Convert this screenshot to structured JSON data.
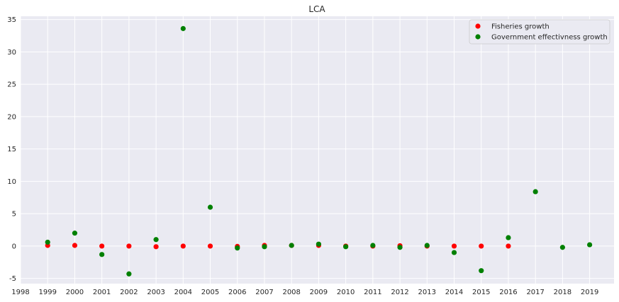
{
  "chart_data": {
    "type": "scatter",
    "title": "LCA",
    "xlabel": "",
    "ylabel": "",
    "xlim": [
      1998,
      2019.9
    ],
    "ylim": [
      -5.8,
      35.5
    ],
    "xticks": [
      1998,
      1999,
      2000,
      2001,
      2002,
      2003,
      2004,
      2005,
      2006,
      2007,
      2008,
      2009,
      2010,
      2011,
      2012,
      2013,
      2014,
      2015,
      2016,
      2017,
      2018,
      2019
    ],
    "yticks": [
      -5,
      0,
      5,
      10,
      15,
      20,
      25,
      30,
      35
    ],
    "grid": true,
    "legend_position": "top-right",
    "series": [
      {
        "name": "Fisheries growth",
        "color": "#ff0000",
        "points": [
          [
            1999,
            0.1
          ],
          [
            2000,
            0.1
          ],
          [
            2001,
            0.0
          ],
          [
            2002,
            0.0
          ],
          [
            2003,
            -0.1
          ],
          [
            2004,
            0.0
          ],
          [
            2005,
            0.0
          ],
          [
            2006,
            -0.05
          ],
          [
            2007,
            0.1
          ],
          [
            2008,
            0.1
          ],
          [
            2009,
            0.1
          ],
          [
            2010,
            0.0
          ],
          [
            2011,
            0.0
          ],
          [
            2012,
            0.05
          ],
          [
            2013,
            0.0
          ],
          [
            2014,
            0.0
          ],
          [
            2015,
            0.0
          ],
          [
            2016,
            0.0
          ]
        ]
      },
      {
        "name": "Government effectivness growth",
        "color": "#008000",
        "points": [
          [
            1999,
            0.6
          ],
          [
            2000,
            2.0
          ],
          [
            2001,
            -1.3
          ],
          [
            2002,
            -4.3
          ],
          [
            2003,
            1.0
          ],
          [
            2004,
            33.6
          ],
          [
            2005,
            6.0
          ],
          [
            2006,
            -0.3
          ],
          [
            2007,
            -0.1
          ],
          [
            2008,
            0.1
          ],
          [
            2009,
            0.3
          ],
          [
            2010,
            -0.1
          ],
          [
            2011,
            0.1
          ],
          [
            2012,
            -0.2
          ],
          [
            2013,
            0.1
          ],
          [
            2014,
            -1.0
          ],
          [
            2015,
            -3.8
          ],
          [
            2016,
            1.3
          ],
          [
            2017,
            8.4
          ],
          [
            2018,
            -0.2
          ],
          [
            2019,
            0.2
          ]
        ]
      }
    ]
  }
}
